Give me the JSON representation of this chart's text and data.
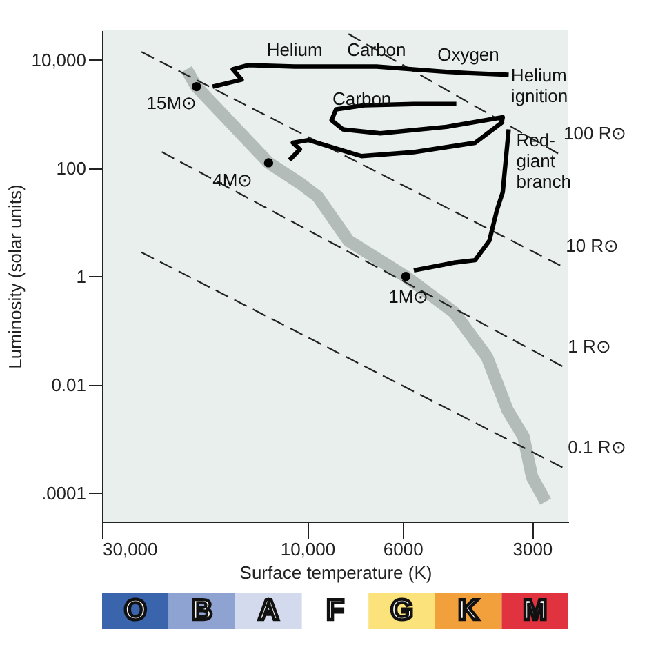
{
  "chart_data": [
    {
      "type": "line",
      "xlabel": "Surface temperature (K)",
      "ylabel": "Luminosity (solar units)",
      "xlim": [
        30000,
        2470
      ],
      "ylim": [
        3e-05,
        35000
      ],
      "xticks": [
        {
          "value": 30000,
          "label": "30,000"
        },
        {
          "value": 10000,
          "label": "10,000"
        },
        6000,
        3000
      ],
      "yticks": [
        {
          "value": 0.0001,
          "label": ".0001"
        },
        0.01,
        1,
        100,
        {
          "value": 10000,
          "label": "10,000"
        }
      ],
      "log": "xy",
      "grid": false,
      "marker": "none",
      "series": [
        {
          "type": "line",
          "color": "#b4bcb9",
          "line_style": "solid",
          "x": [
            19100,
            18100,
            12300,
            10400,
            9460,
            8020,
            5900,
            4560,
            3820,
            3420,
            3140,
            3000,
            2790
          ],
          "values": [
            6700,
            3200,
            126,
            53,
            30,
            4.6,
            1,
            0.22,
            0.033,
            0.0034,
            0.0011,
            0.0002,
            7e-05
          ]
        },
        {
          "type": "line",
          "name": "100 R⊙",
          "color": "#222222",
          "line_style": "dashed",
          "x": [
            8020,
            2610
          ],
          "values": [
            30000,
            187
          ]
        },
        {
          "type": "line",
          "name": "10 R⊙",
          "color": "#222222",
          "line_style": "dashed",
          "x": [
            24300,
            2580
          ],
          "values": [
            14000,
            1.6
          ]
        },
        {
          "type": "line",
          "name": "1 R⊙",
          "color": "#222222",
          "line_style": "dashed",
          "x": [
            21800,
            2550
          ],
          "values": [
            200,
            0.022
          ]
        },
        {
          "type": "line",
          "name": "0.1 R⊙",
          "color": "#222222",
          "line_style": "dashed",
          "x": [
            24300,
            2550
          ],
          "values": [
            2.8,
            0.0003
          ]
        },
        {
          "type": "line",
          "color": "#000000",
          "line_style": "solid",
          "x": [
            16600,
            14200,
            14900,
            13700,
            10700,
            7480,
            6900,
            4740,
            4220,
            3400
          ],
          "values": [
            3200,
            4300,
            6700,
            8000,
            7500,
            7500,
            7500,
            6000,
            5700,
            5300
          ]
        },
        {
          "type": "line",
          "color": "#000000",
          "line_style": "solid",
          "x": [
            11000,
            10400,
            10800,
            9950,
            7480,
            5650,
            4070,
            3530,
            3510,
            4740,
            6760,
            8260,
            8780,
            8570,
            7360,
            5650,
            4500
          ],
          "values": [
            141,
            222,
            294,
            330,
            167,
            198,
            294,
            690,
            870,
            580,
            440,
            520,
            770,
            1220,
            1450,
            1530,
            1530
          ]
        },
        {
          "type": "line",
          "color": "#000000",
          "line_style": "solid",
          "x": [
            5650,
            4560,
            4070,
            3770,
            3620,
            3510,
            3400
          ],
          "values": [
            1.3,
            1.8,
            2.0,
            4.6,
            17,
            36,
            520
          ]
        },
        {
          "type": "scatter",
          "color": "#000000",
          "marker": "circle",
          "x": [
            18100,
            12300,
            5900
          ],
          "values": [
            3200,
            126,
            1
          ]
        }
      ],
      "annotations": [
        {
          "text": "Helium",
          "x": 10700,
          "y": 7500
        },
        {
          "text": "Carbon",
          "x": 6900,
          "y": 7500
        },
        {
          "text": "Oxygen",
          "x": 4220,
          "y": 5700
        },
        {
          "text": "Carbon",
          "x": 8780,
          "y": 770
        },
        {
          "text": "Helium ignition",
          "x": 3510,
          "y": 870
        },
        {
          "text": "Red-giant branch",
          "x": 3620,
          "y": 17
        },
        {
          "text": "15M⊙",
          "x": 18100,
          "y": 3200
        },
        {
          "text": "4M⊙",
          "x": 12300,
          "y": 126
        },
        {
          "text": "1M⊙",
          "x": 5900,
          "y": 1
        }
      ]
    },
    {
      "type": "other",
      "categories": [
        "O",
        "B",
        "A",
        "F",
        "G",
        "K",
        "M"
      ],
      "colors": [
        "#3a64ac",
        "#8fa3d2",
        "#d3daee",
        "#ffffff",
        "#fbe27a",
        "#f2a03c",
        "#e0323f"
      ]
    }
  ]
}
